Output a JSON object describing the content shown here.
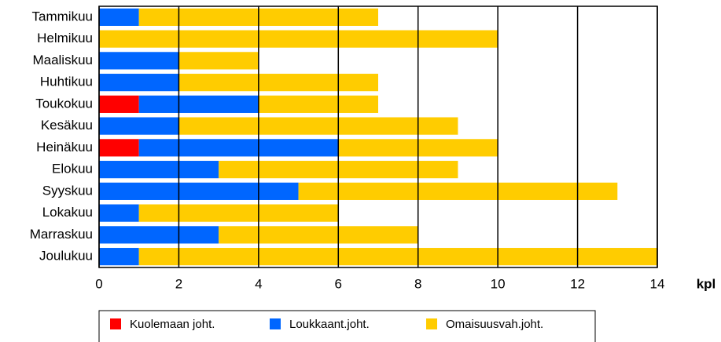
{
  "chart_data": {
    "type": "bar",
    "orientation": "horizontal",
    "stacked": true,
    "categories": [
      "Tammikuu",
      "Helmikuu",
      "Maaliskuu",
      "Huhtikuu",
      "Toukokuu",
      "Kesäkuu",
      "Heinäkuu",
      "Elokuu",
      "Syyskuu",
      "Lokakuu",
      "Marraskuu",
      "Joulukuu"
    ],
    "series": [
      {
        "name": "Kuolemaan joht.",
        "color": "#ff0000",
        "values": [
          0,
          0,
          0,
          0,
          1,
          0,
          1,
          0,
          0,
          0,
          0,
          0
        ]
      },
      {
        "name": "Loukkaant.joht.",
        "color": "#0066ff",
        "values": [
          1,
          0,
          2,
          2,
          3,
          2,
          5,
          3,
          5,
          1,
          3,
          1
        ]
      },
      {
        "name": "Omaisuusvah.joht.",
        "color": "#ffcc00",
        "values": [
          6,
          10,
          2,
          5,
          3,
          7,
          4,
          6,
          8,
          5,
          5,
          13
        ]
      }
    ],
    "x_label": "kpl",
    "xlim": [
      0,
      14
    ],
    "xticks": [
      0,
      2,
      4,
      6,
      8,
      10,
      12,
      14
    ],
    "grid": true,
    "legend": "bottom"
  }
}
